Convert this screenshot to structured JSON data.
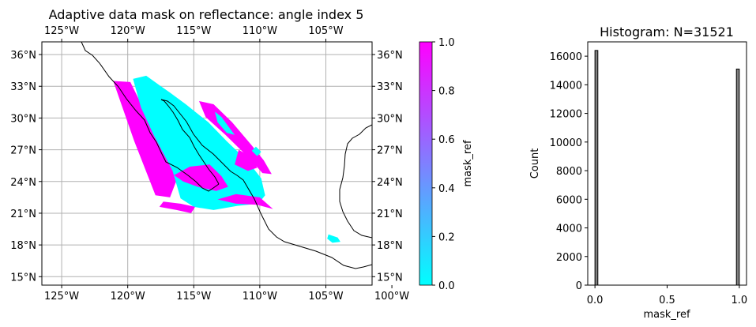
{
  "chart_data": [
    {
      "type": "heatmap",
      "title": "Adaptive data mask on reflectance: angle index 5",
      "xlim": [
        -126.5,
        -101.5
      ],
      "ylim": [
        14.2,
        37.2
      ],
      "x_ticks": [
        {
          "v": -125,
          "label": "125°W"
        },
        {
          "v": -120,
          "label": "120°W"
        },
        {
          "v": -115,
          "label": "115°W"
        },
        {
          "v": -110,
          "label": "110°W"
        },
        {
          "v": -105,
          "label": "105°W"
        },
        {
          "v": -100,
          "label": "100°W"
        }
      ],
      "y_ticks": [
        {
          "v": 15,
          "label": "15°N"
        },
        {
          "v": 18,
          "label": "18°N"
        },
        {
          "v": 21,
          "label": "21°N"
        },
        {
          "v": 24,
          "label": "24°N"
        },
        {
          "v": 27,
          "label": "27°N"
        },
        {
          "v": 30,
          "label": "30°N"
        },
        {
          "v": 33,
          "label": "33°N"
        },
        {
          "v": 36,
          "label": "36°N"
        }
      ],
      "grid": true,
      "colorbar": {
        "label": "mask_ref",
        "range": [
          0,
          1
        ],
        "ticks": [
          "0.0",
          "0.2",
          "0.4",
          "0.6",
          "0.8",
          "1.0"
        ],
        "colors": [
          "#00ffff",
          "#ff00ff"
        ]
      },
      "regions": [
        {
          "value": 1,
          "color": "#ff00ff",
          "outline": [
            [
              -121.1,
              33.5
            ],
            [
              -119.8,
              33.4
            ],
            [
              -118.3,
              29.6
            ],
            [
              -116.6,
              25.9
            ],
            [
              -116.0,
              25.1
            ],
            [
              -116.8,
              22.5
            ],
            [
              -117.9,
              22.7
            ],
            [
              -119.5,
              27.8
            ]
          ]
        },
        {
          "value": 0,
          "color": "#00ffff",
          "outline": [
            [
              -119.6,
              33.7
            ],
            [
              -118.6,
              34.0
            ],
            [
              -117.6,
              33.1
            ],
            [
              -116.8,
              32.4
            ],
            [
              -115.6,
              31.3
            ],
            [
              -113.9,
              29.6
            ],
            [
              -112.5,
              27.8
            ],
            [
              -110.9,
              25.9
            ],
            [
              -109.9,
              24.3
            ],
            [
              -109.6,
              22.7
            ],
            [
              -110.1,
              21.9
            ],
            [
              -111.7,
              21.7
            ],
            [
              -113.5,
              21.3
            ],
            [
              -115.0,
              21.6
            ],
            [
              -116.0,
              22.4
            ],
            [
              -116.6,
              25.0
            ],
            [
              -118.0,
              28.3
            ],
            [
              -119.0,
              31.0
            ]
          ]
        },
        {
          "value": 1,
          "color": "#ff00ff",
          "outline": [
            [
              -116.5,
              24.6
            ],
            [
              -115.3,
              25.4
            ],
            [
              -113.8,
              25.6
            ],
            [
              -112.9,
              24.5
            ],
            [
              -112.4,
              23.5
            ],
            [
              -113.3,
              23.1
            ],
            [
              -114.7,
              23.5
            ],
            [
              -115.8,
              24.0
            ]
          ]
        },
        {
          "value": 1,
          "color": "#ff00ff",
          "outline": [
            [
              -111.6,
              27.0
            ],
            [
              -110.6,
              26.3
            ],
            [
              -110.2,
              25.3
            ],
            [
              -110.9,
              25.0
            ],
            [
              -111.9,
              25.6
            ]
          ]
        },
        {
          "value": 1,
          "color": "#ff00ff",
          "outline": [
            [
              -114.6,
              31.6
            ],
            [
              -113.5,
              31.3
            ],
            [
              -112.1,
              29.6
            ],
            [
              -110.6,
              27.4
            ],
            [
              -109.7,
              26.0
            ],
            [
              -109.1,
              24.7
            ],
            [
              -109.8,
              24.8
            ],
            [
              -110.8,
              26.2
            ],
            [
              -112.6,
              28.4
            ],
            [
              -114.1,
              30.1
            ]
          ]
        },
        {
          "value": 0,
          "color": "#00ffff",
          "outline": [
            [
              -113.4,
              30.6
            ],
            [
              -112.9,
              30.1
            ],
            [
              -112.2,
              28.9
            ],
            [
              -111.9,
              28.4
            ],
            [
              -112.5,
              28.6
            ],
            [
              -113.2,
              29.6
            ]
          ]
        },
        {
          "value": 0,
          "color": "#00ffff",
          "outline": [
            [
              -110.3,
              27.3
            ],
            [
              -109.9,
              26.8
            ],
            [
              -110.2,
              26.4
            ],
            [
              -110.6,
              26.9
            ]
          ]
        },
        {
          "value": 1,
          "color": "#ff00ff",
          "outline": [
            [
              -117.6,
              21.6
            ],
            [
              -116.3,
              21.3
            ],
            [
              -115.2,
              21.0
            ],
            [
              -114.9,
              21.6
            ],
            [
              -116.0,
              21.9
            ],
            [
              -117.3,
              22.1
            ]
          ]
        },
        {
          "value": 1,
          "color": "#ff00ff",
          "outline": [
            [
              -113.2,
              22.3
            ],
            [
              -111.8,
              21.9
            ],
            [
              -110.2,
              21.8
            ],
            [
              -109.0,
              21.4
            ],
            [
              -110.0,
              22.5
            ],
            [
              -111.8,
              22.8
            ]
          ]
        },
        {
          "value": 0,
          "color": "#00ffff",
          "outline": [
            [
              -104.8,
              19.0
            ],
            [
              -104.1,
              18.7
            ],
            [
              -103.9,
              18.3
            ],
            [
              -104.5,
              18.2
            ],
            [
              -104.9,
              18.6
            ]
          ]
        }
      ]
    },
    {
      "type": "bar",
      "title": "Histogram: N=31521",
      "xlabel": "mask_ref",
      "ylabel": "Count",
      "xlim": [
        -0.05,
        1.05
      ],
      "ylim": [
        0,
        17000
      ],
      "x_ticks": [
        "0.0",
        "0.5",
        "1.0"
      ],
      "y_ticks": [
        "0",
        "2000",
        "4000",
        "6000",
        "8000",
        "10000",
        "12000",
        "14000",
        "16000"
      ],
      "bins": [
        {
          "x0": 0.0,
          "x1": 0.02,
          "count": 16400
        },
        {
          "x0": 0.98,
          "x1": 1.0,
          "count": 15100
        }
      ],
      "bar_color": "#808080"
    }
  ]
}
